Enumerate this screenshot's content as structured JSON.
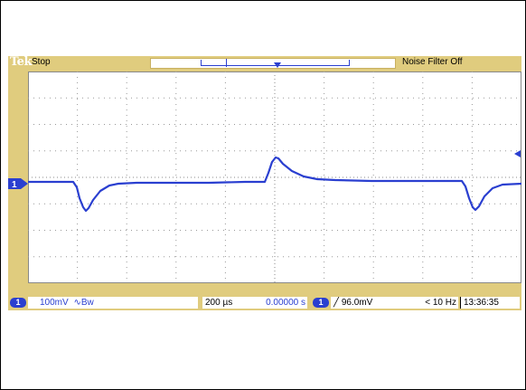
{
  "topbar": {
    "brand": "Tek",
    "acquisition_status": "Stop",
    "noise_filter": "Noise Filter Off"
  },
  "channel": {
    "number": "1",
    "scale": "100mV",
    "coupling_symbol": "∿Bw"
  },
  "timebase": {
    "scale": "200 µs",
    "position": "0.00000 s"
  },
  "trigger": {
    "source": "1",
    "slope_symbol": "╱",
    "level": "96.0mV",
    "frequency": "< 10 Hz"
  },
  "clock": "13:36:35",
  "colors": {
    "bezel": "#e0cc7e",
    "trace": "#2a3fd0",
    "grid": "#888888",
    "marker": "#2a3fd0"
  },
  "icons": {
    "trigger_position": "trigger-position-icon",
    "ch1_ground": "ch1-ground-marker-icon",
    "trigger_level": "trigger-level-arrow-icon"
  }
}
